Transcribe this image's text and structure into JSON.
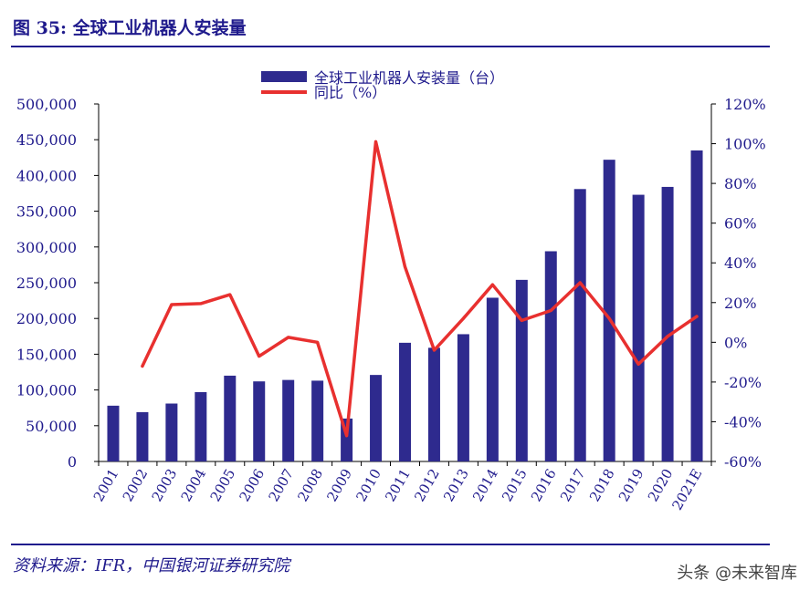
{
  "figure": {
    "title": "图 35:  全球工业机器人安装量",
    "source": "资料来源：IFR，中国银河证券研究院",
    "watermark": "头条 @未来智库"
  },
  "colors": {
    "bar": "#2e2a8e",
    "line": "#e8302f",
    "accent": "#1f1a8c"
  },
  "chart_data": {
    "type": "bar",
    "title": "",
    "categories": [
      "2001",
      "2002",
      "2003",
      "2004",
      "2005",
      "2006",
      "2007",
      "2008",
      "2009",
      "2010",
      "2011",
      "2012",
      "2013",
      "2014",
      "2015",
      "2016",
      "2017",
      "2018",
      "2019",
      "2020",
      "2021E"
    ],
    "series": [
      {
        "name": "全球工业机器人安装量（台）",
        "type": "bar",
        "axis": "left",
        "values": [
          78000,
          69000,
          81000,
          97000,
          120000,
          112000,
          114000,
          113000,
          60000,
          121000,
          166000,
          159000,
          178000,
          229000,
          254000,
          294000,
          381000,
          422000,
          373000,
          384000,
          435000
        ]
      },
      {
        "name": "同比（%）",
        "type": "line",
        "axis": "right",
        "values": [
          null,
          -12,
          19,
          19.5,
          24,
          -7,
          2.5,
          0,
          -47,
          101,
          38,
          -4,
          12,
          29,
          11,
          16,
          30,
          12,
          -11,
          3,
          13
        ]
      }
    ],
    "y_left": {
      "min": 0,
      "max": 500000,
      "step": 50000,
      "tick_labels": [
        "0",
        "50,000",
        "100,000",
        "150,000",
        "200,000",
        "250,000",
        "300,000",
        "350,000",
        "400,000",
        "450,000",
        "500,000"
      ]
    },
    "y_right": {
      "min": -60,
      "max": 120,
      "step": 20,
      "tick_labels": [
        "-60%",
        "-40%",
        "-20%",
        "0%",
        "20%",
        "40%",
        "60%",
        "80%",
        "100%",
        "120%"
      ]
    },
    "legend": "top-center",
    "grid": false
  }
}
